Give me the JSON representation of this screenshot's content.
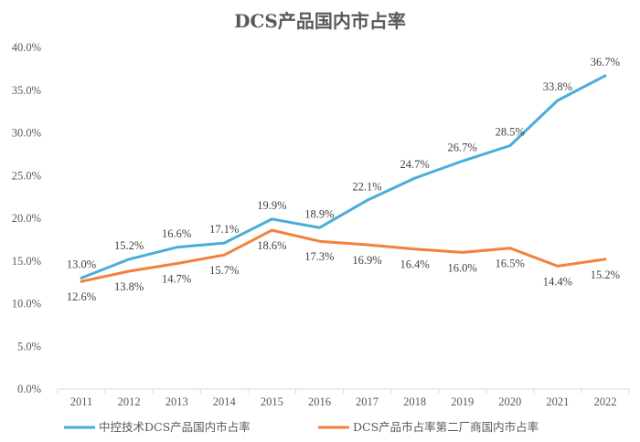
{
  "chart_data": {
    "type": "line",
    "title": "DCS产品国内市占率",
    "xlabel": "",
    "ylabel": "",
    "ylim": [
      0,
      40
    ],
    "yticks": [
      "0.0%",
      "5.0%",
      "10.0%",
      "15.0%",
      "20.0%",
      "25.0%",
      "30.0%",
      "35.0%",
      "40.0%"
    ],
    "categories": [
      "2011",
      "2012",
      "2013",
      "2014",
      "2015",
      "2016",
      "2017",
      "2018",
      "2019",
      "2020",
      "2021",
      "2022"
    ],
    "series": [
      {
        "name": "中控技术DCS产品国内市占率",
        "color": "#4BACDA",
        "values": [
          13.0,
          15.2,
          16.6,
          17.1,
          19.9,
          18.9,
          22.1,
          24.7,
          26.7,
          28.5,
          33.8,
          36.7
        ],
        "labels": [
          "13.0%",
          "15.2%",
          "16.6%",
          "17.1%",
          "19.9%",
          "18.9%",
          "22.1%",
          "24.7%",
          "26.7%",
          "28.5%",
          "33.8%",
          "36.7%"
        ]
      },
      {
        "name": "DCS产品市占率第二厂商国内市占率",
        "color": "#F2813B",
        "values": [
          12.6,
          13.8,
          14.7,
          15.7,
          18.6,
          17.3,
          16.9,
          16.4,
          16.0,
          16.5,
          14.4,
          15.2
        ],
        "labels": [
          "12.6%",
          "13.8%",
          "14.7%",
          "15.7%",
          "18.6%",
          "17.3%",
          "16.9%",
          "16.4%",
          "16.0%",
          "16.5%",
          "14.4%",
          "15.2%"
        ]
      }
    ],
    "legend_position": "bottom",
    "grid": false
  }
}
